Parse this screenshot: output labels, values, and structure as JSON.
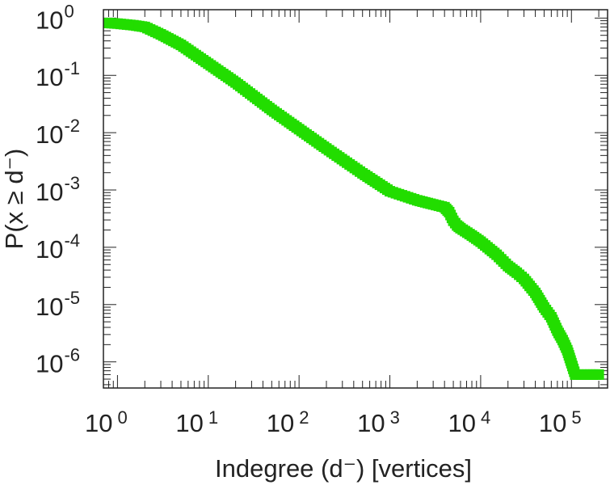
{
  "chart_data": {
    "type": "scatter",
    "title": "",
    "xlabel": "Indegree (d⁻) [vertices]",
    "ylabel": "P(x ≥ d⁻)",
    "x_scale": "log",
    "y_scale": "log",
    "xlim": [
      0.7,
      250000
    ],
    "ylim": [
      3.5e-07,
      1.4
    ],
    "grid": false,
    "legend": "none",
    "marker": "square",
    "color": "#22dd00",
    "x_tick_labels": [
      {
        "base": "10",
        "exp": "0",
        "value": 1
      },
      {
        "base": "10",
        "exp": "1",
        "value": 10
      },
      {
        "base": "10",
        "exp": "2",
        "value": 100
      },
      {
        "base": "10",
        "exp": "3",
        "value": 1000
      },
      {
        "base": "10",
        "exp": "4",
        "value": 10000
      },
      {
        "base": "10",
        "exp": "5",
        "value": 100000
      }
    ],
    "y_tick_labels": [
      {
        "base": "10",
        "exp": "0",
        "value": 1
      },
      {
        "base": "10",
        "exp": "-1",
        "value": 0.1
      },
      {
        "base": "10",
        "exp": "-2",
        "value": 0.01
      },
      {
        "base": "10",
        "exp": "-3",
        "value": 0.001
      },
      {
        "base": "10",
        "exp": "-4",
        "value": 0.0001
      },
      {
        "base": "10",
        "exp": "-5",
        "value": 1e-05
      },
      {
        "base": "10",
        "exp": "-6",
        "value": 1e-06
      }
    ],
    "series": [
      {
        "x": [
          0.8,
          1,
          1.5,
          2,
          3,
          5,
          10,
          20,
          50,
          100,
          200,
          500,
          1000,
          2000,
          3000,
          4000,
          4500,
          5000,
          5500,
          6000,
          8000,
          10000,
          15000,
          20000,
          25000,
          30000,
          40000,
          50000,
          60000,
          70000,
          80000,
          90000,
          100000,
          110000,
          150000,
          200000
        ],
        "y": [
          0.82,
          0.8,
          0.75,
          0.7,
          0.52,
          0.34,
          0.16,
          0.075,
          0.025,
          0.0115,
          0.0053,
          0.00195,
          0.00095,
          0.00066,
          0.00056,
          0.0005,
          0.00041,
          0.00029,
          0.00024,
          0.000215,
          0.00016,
          0.000125,
          7.4e-05,
          4.7e-05,
          3.6e-05,
          2.8e-05,
          1.6e-05,
          8.9e-06,
          6e-06,
          3.5e-06,
          2.4e-06,
          1.6e-06,
          9.5e-07,
          6e-07,
          6e-07,
          6e-07
        ]
      }
    ]
  }
}
